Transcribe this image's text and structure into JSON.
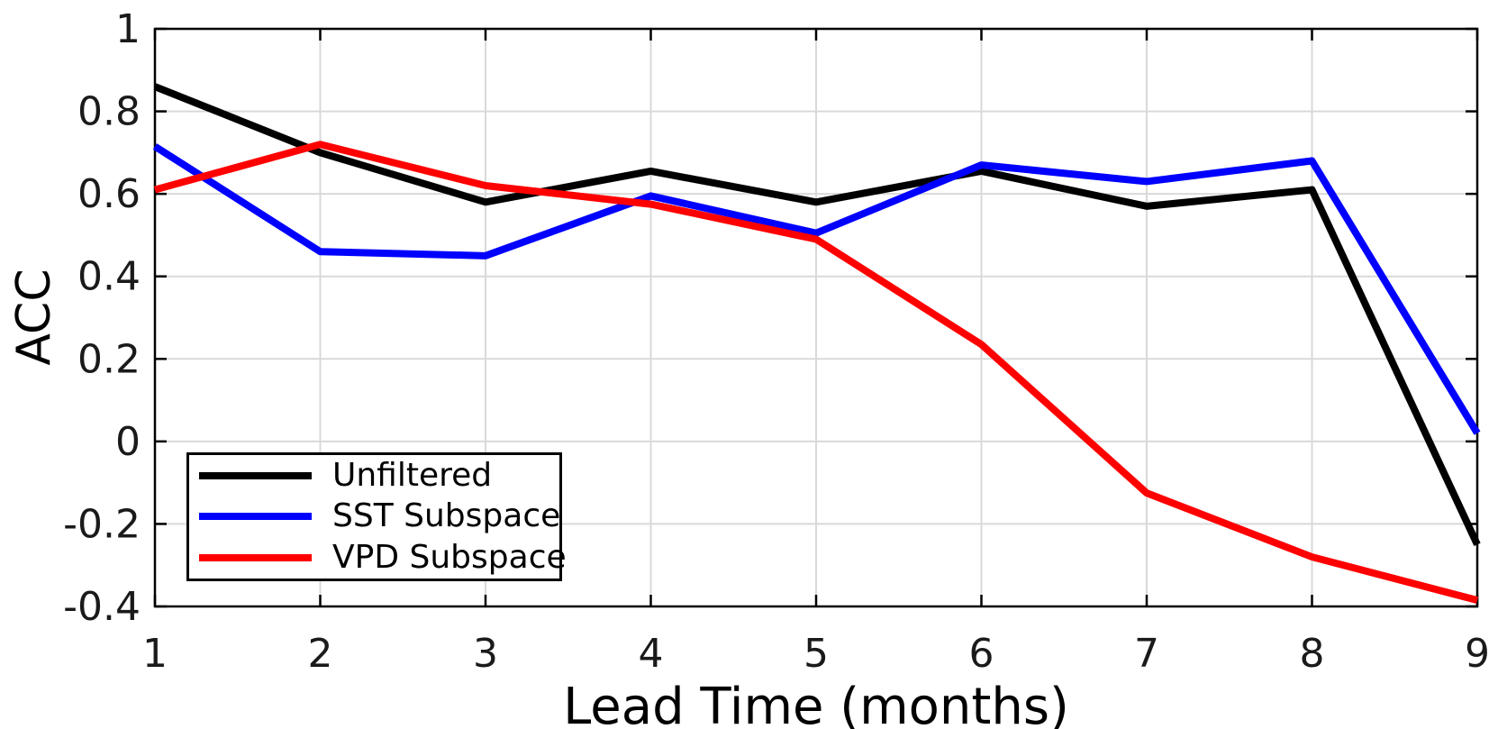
{
  "figure": {
    "background": "#ffffff",
    "axis_color": "#000000",
    "grid_color": "#d9d9d9",
    "tick_label_color": "#1a1a1a"
  },
  "chart_data": {
    "type": "line",
    "title": "",
    "xlabel": "Lead Time (months)",
    "ylabel": "ACC",
    "x": [
      1,
      2,
      3,
      4,
      5,
      6,
      7,
      8,
      9
    ],
    "xlim": [
      1,
      9
    ],
    "ylim": [
      -0.4,
      1
    ],
    "xticks": {
      "values": [
        1,
        2,
        3,
        4,
        5,
        6,
        7,
        8,
        9
      ],
      "labels": [
        "1",
        "2",
        "3",
        "4",
        "5",
        "6",
        "7",
        "8",
        "9"
      ]
    },
    "yticks": {
      "values": [
        1,
        0.8,
        0.6,
        0.4,
        0.2,
        0,
        -0.2,
        -0.4
      ],
      "labels": [
        "1",
        "0.8",
        "0.6",
        "0.4",
        "0.2",
        "0",
        "-0.2",
        "-0.4"
      ]
    },
    "grid": true,
    "line_width": 8,
    "legend": {
      "position": "lower-left"
    },
    "series": [
      {
        "name": "Unfiltered",
        "color": "#000000",
        "values": [
          0.86,
          0.7,
          0.58,
          0.655,
          0.58,
          0.655,
          0.57,
          0.61,
          -0.25
        ]
      },
      {
        "name": "SST Subspace",
        "color": "#0000ff",
        "values": [
          0.715,
          0.46,
          0.45,
          0.595,
          0.505,
          0.67,
          0.63,
          0.68,
          0.02
        ]
      },
      {
        "name": "VPD Subspace",
        "color": "#ff0000",
        "values": [
          0.61,
          0.72,
          0.62,
          0.575,
          0.49,
          0.235,
          -0.125,
          -0.28,
          -0.385
        ]
      }
    ]
  }
}
